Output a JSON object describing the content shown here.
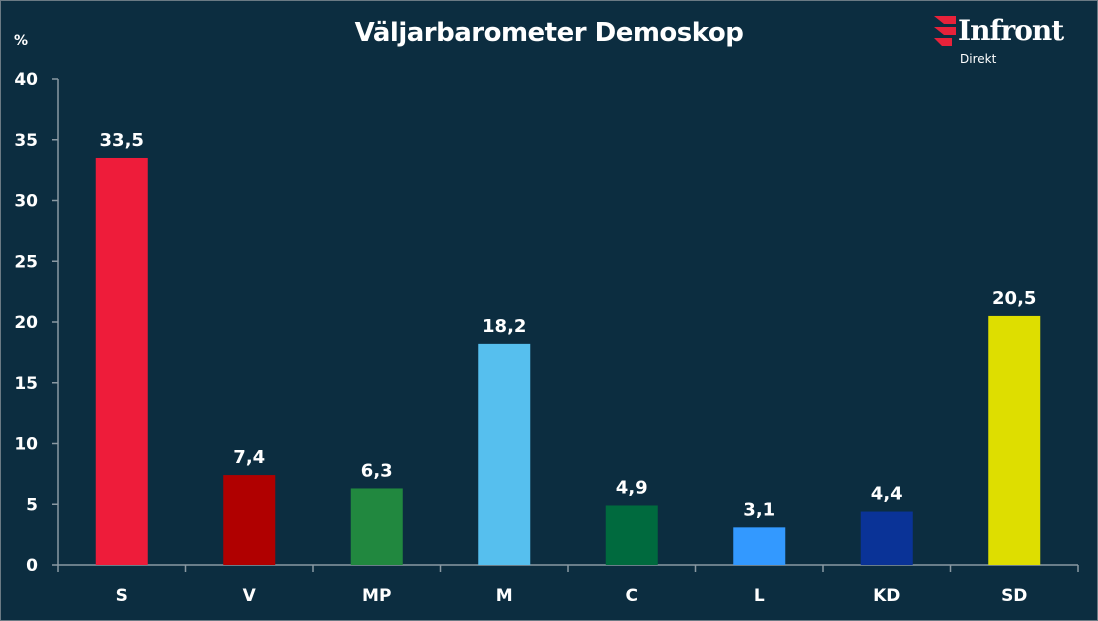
{
  "chart_data": {
    "type": "bar",
    "title": "Väljarbarometer Demoskop",
    "ylabel": "%",
    "xlabel": "",
    "ylim": [
      0,
      40
    ],
    "yticks": [
      0,
      5,
      10,
      15,
      20,
      25,
      30,
      35,
      40
    ],
    "grid": false,
    "legend": "none",
    "categories": [
      "S",
      "V",
      "MP",
      "M",
      "C",
      "L",
      "KD",
      "SD"
    ],
    "values": [
      33.5,
      7.4,
      6.3,
      18.2,
      4.9,
      3.1,
      4.4,
      20.5
    ],
    "value_labels": [
      "33,5",
      "7,4",
      "6,3",
      "18,2",
      "4,9",
      "3,1",
      "4,4",
      "20,5"
    ],
    "colors": [
      "#ee1c3a",
      "#b00000",
      "#21883f",
      "#56bfee",
      "#006a3e",
      "#3399ff",
      "#0a3397",
      "#dede00"
    ]
  },
  "logo": {
    "word": "Infront",
    "sub": "Direkt",
    "accent": "#e8223a"
  },
  "colors": {
    "background": "#0c2d40",
    "text": "#ffffff",
    "axis": "#8a99a3"
  }
}
